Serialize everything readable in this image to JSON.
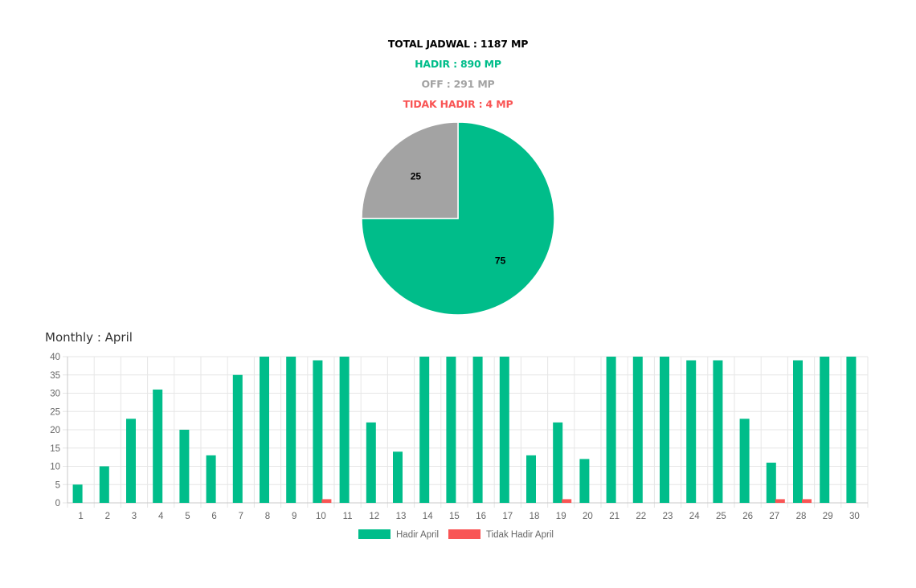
{
  "summary": {
    "total": "TOTAL JADWAL : 1187 MP",
    "hadir": "HADIR : 890 MP",
    "off": "OFF : 291 MP",
    "tidak_hadir": "TIDAK HADIR : 4 MP"
  },
  "colors": {
    "total": "#000000",
    "hadir": "#00bd8a",
    "off": "#a3a3a3",
    "tidak_hadir": "#f95454",
    "grid": "#e6e6e6"
  },
  "chart_data": [
    {
      "type": "pie",
      "slices": [
        {
          "label": "HADIR",
          "value": 75,
          "color": "#00bd8a"
        },
        {
          "label": "OFF",
          "value": 25,
          "color": "#a3a3a3"
        }
      ],
      "data_labels": [
        "75",
        "25"
      ]
    },
    {
      "type": "bar",
      "title": "Monthly : April",
      "categories": [
        "1",
        "2",
        "3",
        "4",
        "5",
        "6",
        "7",
        "8",
        "9",
        "10",
        "11",
        "12",
        "13",
        "14",
        "15",
        "16",
        "17",
        "18",
        "19",
        "20",
        "21",
        "22",
        "23",
        "24",
        "25",
        "26",
        "27",
        "28",
        "29",
        "30"
      ],
      "series": [
        {
          "name": "Hadir April",
          "color": "#00bd8a",
          "values": [
            5,
            10,
            23,
            31,
            20,
            13,
            35,
            40,
            40,
            39,
            40,
            22,
            14,
            40,
            40,
            40,
            40,
            13,
            22,
            12,
            40,
            40,
            40,
            39,
            39,
            23,
            11,
            39,
            40,
            40
          ]
        },
        {
          "name": "Tidak Hadir April",
          "color": "#f95454",
          "values": [
            0,
            0,
            0,
            0,
            0,
            0,
            0,
            0,
            0,
            1,
            0,
            0,
            0,
            0,
            0,
            0,
            0,
            0,
            1,
            0,
            0,
            0,
            0,
            0,
            0,
            0,
            1,
            1,
            0,
            0
          ]
        }
      ],
      "ylim": [
        0,
        40
      ],
      "yticks": [
        "0",
        "5",
        "10",
        "15",
        "20",
        "25",
        "30",
        "35",
        "40"
      ],
      "grid": true,
      "legend": "bottom"
    }
  ]
}
